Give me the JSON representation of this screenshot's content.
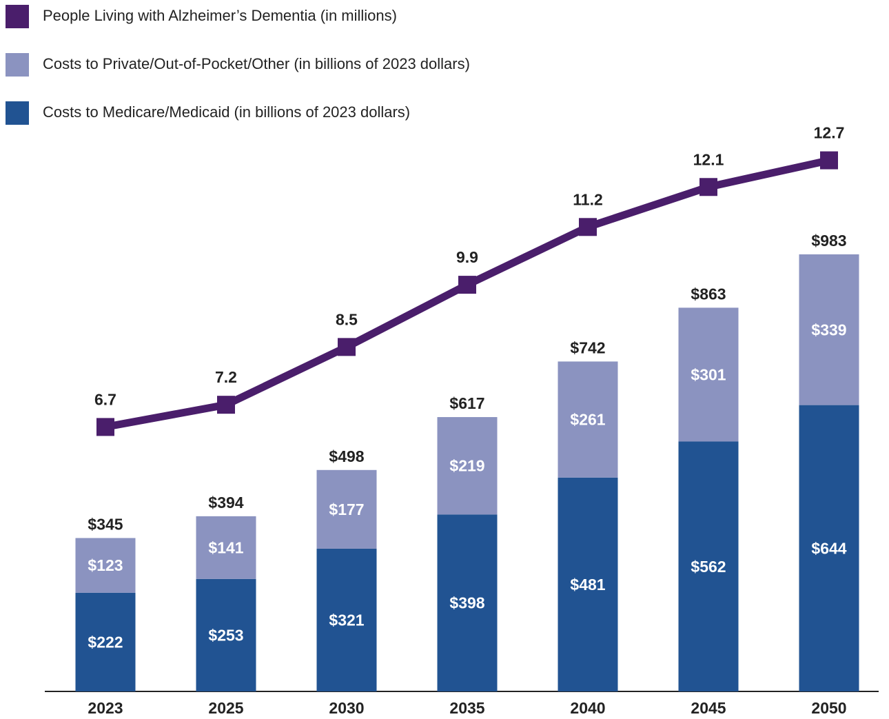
{
  "chart_data": {
    "type": "bar",
    "categories": [
      "2023",
      "2025",
      "2030",
      "2035",
      "2040",
      "2045",
      "2050"
    ],
    "series": [
      {
        "name": "People Living with Alzheimer’s Dementia (in millions)",
        "type": "line",
        "axis": "y2",
        "color": "#4a1e6b",
        "values": [
          6.7,
          7.2,
          8.5,
          9.9,
          11.2,
          12.1,
          12.7
        ]
      },
      {
        "name": "Costs to Private/Out-of-Pocket/Other (in billions of 2023 dollars)",
        "color": "#8b93c0",
        "values": [
          123,
          141,
          177,
          219,
          261,
          301,
          339
        ],
        "value_labels": [
          "$123",
          "$141",
          "$177",
          "$219",
          "$261",
          "$301",
          "$339"
        ]
      },
      {
        "name": "Costs to Medicare/Medicaid (in billions of 2023 dollars)",
        "color": "#215392",
        "values": [
          222,
          253,
          321,
          398,
          481,
          562,
          644
        ],
        "value_labels": [
          "$222",
          "$253",
          "$321",
          "$398",
          "$481",
          "$562",
          "$644"
        ]
      }
    ],
    "total_labels": [
      "$345",
      "$394",
      "$498",
      "$617",
      "$742",
      "$863",
      "$983"
    ],
    "ylim": [
      0,
      1000
    ],
    "y2lim": [
      0.75,
      13.5
    ],
    "stacked": true
  }
}
